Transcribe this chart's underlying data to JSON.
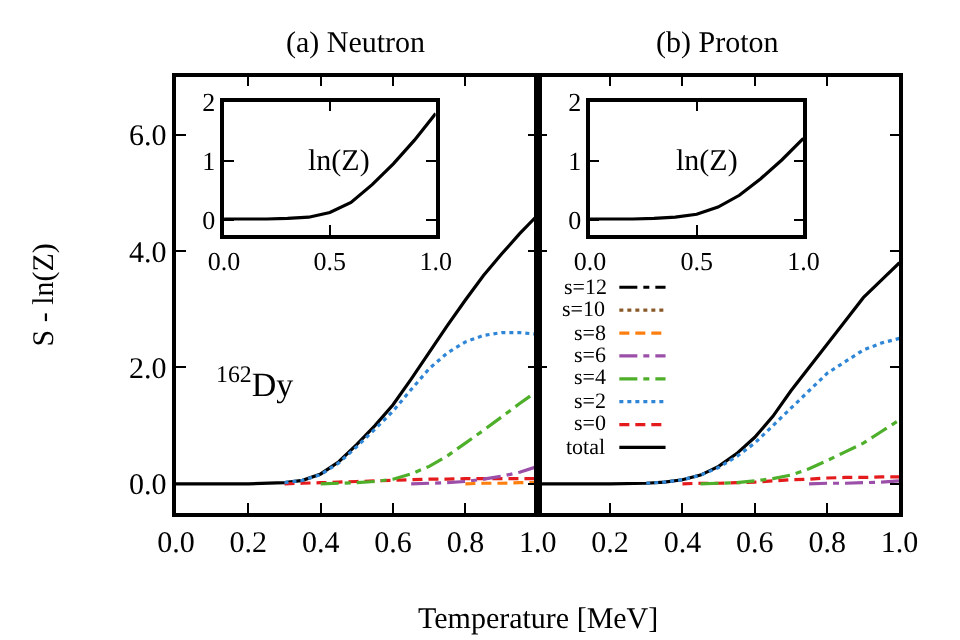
{
  "chart_data": [
    {
      "type": "line",
      "title": "(a) Neutron",
      "xlabel": "Temperature [MeV]",
      "ylabel": "S - ln(Z)",
      "annotations": [
        "$^{162}$Dy"
      ],
      "x": [
        0,
        0.1,
        0.2,
        0.3,
        0.35,
        0.4,
        0.45,
        0.5,
        0.55,
        0.6,
        0.65,
        0.7,
        0.75,
        0.8,
        0.85,
        0.9,
        0.95,
        1.0
      ],
      "xlim": [
        0,
        1.0
      ],
      "ylim": [
        -0.5,
        7.0
      ],
      "xticks": [
        {
          "value": 0,
          "label": "0.0"
        },
        {
          "value": 0.2,
          "label": "0.2"
        },
        {
          "value": 0.4,
          "label": "0.4"
        },
        {
          "value": 0.6,
          "label": "0.6"
        },
        {
          "value": 0.8,
          "label": "0.8"
        },
        {
          "value": 1.0,
          "label": "1.0"
        }
      ],
      "yticks": [
        {
          "value": 0,
          "label": "0.0"
        },
        {
          "value": 2,
          "label": "2.0"
        },
        {
          "value": 4,
          "label": "4.0"
        },
        {
          "value": 6,
          "label": "6.0"
        }
      ],
      "series": [
        {
          "color": "#ff7f0e",
          "line_style": "dashed",
          "values": [
            null,
            null,
            null,
            null,
            null,
            null,
            null,
            null,
            null,
            null,
            null,
            null,
            null,
            0,
            0.01,
            0.01,
            0.02,
            0.02
          ]
        },
        {
          "color": "#9b4fa8",
          "line_style": "dashdot",
          "values": [
            null,
            null,
            null,
            null,
            null,
            null,
            null,
            null,
            null,
            null,
            0,
            0.01,
            0.02,
            0.04,
            0.08,
            0.13,
            0.2,
            0.3
          ]
        },
        {
          "color": "#4daf2a",
          "line_style": "dashdot",
          "values": [
            null,
            null,
            null,
            null,
            null,
            0,
            0.01,
            0.02,
            0.04,
            0.08,
            0.17,
            0.3,
            0.48,
            0.7,
            0.92,
            1.15,
            1.38,
            1.6
          ]
        },
        {
          "color": "#2f86d6",
          "line_style": "dotted",
          "values": [
            null,
            null,
            null,
            0.02,
            0.06,
            0.16,
            0.36,
            0.64,
            0.94,
            1.25,
            1.62,
            1.98,
            2.25,
            2.44,
            2.55,
            2.6,
            2.6,
            2.57
          ]
        },
        {
          "color": "#e41a1c",
          "line_style": "dashed",
          "values": [
            null,
            null,
            null,
            0,
            0.01,
            0.02,
            0.03,
            0.04,
            0.05,
            0.06,
            0.07,
            0.08,
            0.08,
            0.09,
            0.09,
            0.09,
            0.09,
            0.09
          ]
        },
        {
          "color": "#000000",
          "line_style": "solid",
          "values": [
            0,
            0,
            0,
            0.02,
            0.06,
            0.17,
            0.38,
            0.68,
            1.0,
            1.36,
            1.8,
            2.26,
            2.72,
            3.16,
            3.58,
            3.95,
            4.3,
            4.62
          ]
        }
      ]
    },
    {
      "type": "line",
      "annotations": [
        "ln(Z)"
      ],
      "x": [
        0,
        0.1,
        0.2,
        0.3,
        0.4,
        0.5,
        0.6,
        0.7,
        0.8,
        0.9,
        1.0
      ],
      "xlim": [
        0,
        1.0
      ],
      "ylim": [
        -0.25,
        2.0
      ],
      "xticks": [
        {
          "value": 0,
          "label": "0.0"
        },
        {
          "value": 0.5,
          "label": "0.5"
        },
        {
          "value": 1.0,
          "label": "1.0"
        }
      ],
      "yticks": [
        0,
        1,
        2
      ],
      "series": [
        {
          "color": "#000000",
          "line_style": "solid",
          "values": [
            0.02,
            0.02,
            0.02,
            0.03,
            0.05,
            0.13,
            0.3,
            0.6,
            0.95,
            1.35,
            1.8
          ]
        }
      ]
    },
    {
      "type": "line",
      "title": "(b) Proton",
      "x": [
        0,
        0.1,
        0.2,
        0.3,
        0.35,
        0.4,
        0.45,
        0.5,
        0.55,
        0.6,
        0.65,
        0.7,
        0.75,
        0.8,
        0.85,
        0.9,
        0.95,
        1.0
      ],
      "xlim": [
        0,
        1.0
      ],
      "ylim": [
        -0.5,
        7.0
      ],
      "xticks": [
        {
          "value": 0,
          "label": null
        },
        {
          "value": 0.2,
          "label": "0.2"
        },
        {
          "value": 0.4,
          "label": "0.4"
        },
        {
          "value": 0.6,
          "label": "0.6"
        },
        {
          "value": 0.8,
          "label": "0.8"
        },
        {
          "value": 1.0,
          "label": "1.0"
        }
      ],
      "yticks": [
        {
          "value": 0,
          "label": null
        },
        {
          "value": 2,
          "label": null
        },
        {
          "value": 4,
          "label": null
        },
        {
          "value": 6,
          "label": null
        }
      ],
      "tick_labels": "x",
      "legend": "bottom left",
      "series": [
        {
          "name": "s=12",
          "color": "#000000",
          "line_style": "dashdot",
          "values": [
            null,
            null,
            null,
            null,
            null,
            null,
            null,
            null,
            null,
            null,
            null,
            null,
            null,
            null,
            null,
            null,
            null,
            null
          ]
        },
        {
          "name": "s=10",
          "color": "#8b5a2b",
          "line_style": "dotted",
          "values": [
            null,
            null,
            null,
            null,
            null,
            null,
            null,
            null,
            null,
            null,
            null,
            null,
            null,
            null,
            null,
            null,
            null,
            null
          ]
        },
        {
          "name": "s=8",
          "color": "#ff7f0e",
          "line_style": "dashed",
          "values": [
            null,
            null,
            null,
            null,
            null,
            null,
            null,
            null,
            null,
            null,
            null,
            null,
            null,
            null,
            null,
            null,
            null,
            null
          ]
        },
        {
          "name": "s=6",
          "color": "#9b4fa8",
          "line_style": "dashdot",
          "values": [
            null,
            null,
            null,
            null,
            null,
            null,
            null,
            null,
            null,
            null,
            null,
            null,
            0,
            0.01,
            0.01,
            0.02,
            0.03,
            0.05
          ]
        },
        {
          "name": "s=4",
          "color": "#4daf2a",
          "line_style": "dashdot",
          "values": [
            null,
            null,
            null,
            null,
            null,
            null,
            0,
            0.01,
            0.02,
            0.05,
            0.09,
            0.15,
            0.26,
            0.4,
            0.55,
            0.7,
            0.9,
            1.1
          ]
        },
        {
          "name": "s=2",
          "color": "#2f86d6",
          "line_style": "dotted",
          "values": [
            null,
            null,
            null,
            0.01,
            0.03,
            0.07,
            0.15,
            0.28,
            0.47,
            0.7,
            1.0,
            1.3,
            1.6,
            1.9,
            2.1,
            2.3,
            2.42,
            2.5
          ]
        },
        {
          "name": "s=0",
          "color": "#e41a1c",
          "line_style": "dashed",
          "values": [
            null,
            null,
            null,
            null,
            null,
            0,
            0.01,
            0.01,
            0.02,
            0.03,
            0.05,
            0.07,
            0.08,
            0.1,
            0.11,
            0.11,
            0.12,
            0.12
          ]
        },
        {
          "name": "total",
          "color": "#000000",
          "line_style": "solid",
          "values": [
            0,
            0,
            0,
            0.01,
            0.03,
            0.07,
            0.15,
            0.3,
            0.52,
            0.8,
            1.16,
            1.6,
            2.0,
            2.4,
            2.8,
            3.2,
            3.5,
            3.8
          ]
        }
      ]
    },
    {
      "type": "line",
      "annotations": [
        "ln(Z)"
      ],
      "x": [
        0,
        0.1,
        0.2,
        0.3,
        0.4,
        0.5,
        0.6,
        0.7,
        0.8,
        0.9,
        1.0
      ],
      "xlim": [
        0,
        1.0
      ],
      "ylim": [
        -0.25,
        2.0
      ],
      "xticks": [
        {
          "value": 0,
          "label": "0.0"
        },
        {
          "value": 0.5,
          "label": "0.5"
        },
        {
          "value": 1.0,
          "label": "1.0"
        }
      ],
      "yticks": [
        0,
        1,
        2
      ],
      "series": [
        {
          "color": "#000000",
          "line_style": "solid",
          "values": [
            0.02,
            0.02,
            0.02,
            0.03,
            0.05,
            0.1,
            0.22,
            0.42,
            0.7,
            1.02,
            1.38
          ]
        }
      ]
    }
  ]
}
